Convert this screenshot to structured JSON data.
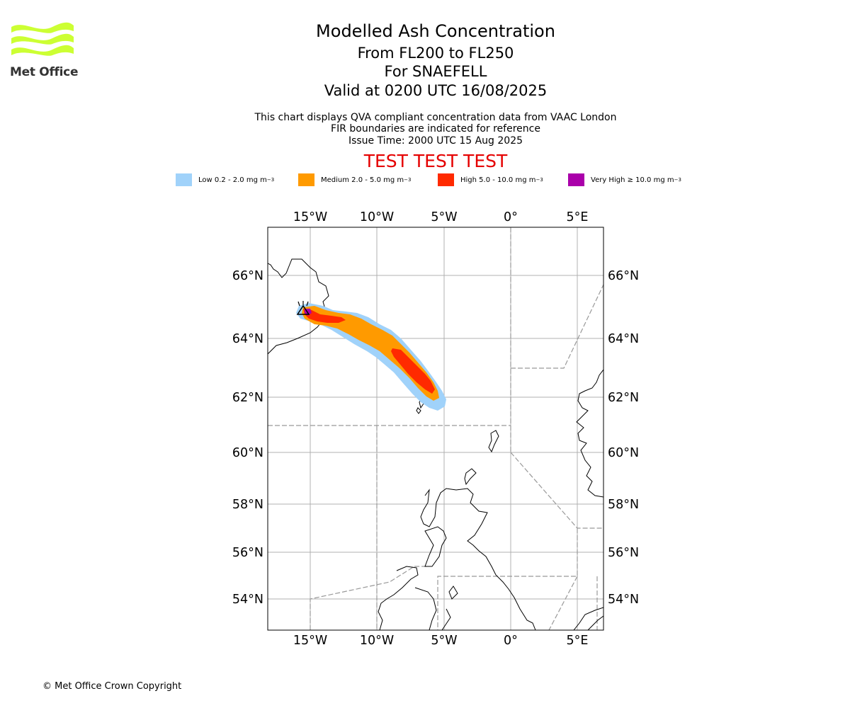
{
  "header": {
    "title": "Modelled Ash Concentration",
    "subtitle_levels": "From FL200 to FL250",
    "subtitle_volcano": "For SNAEFELL",
    "subtitle_valid": "Valid at 0200 UTC 16/08/2025",
    "info_line1": "This chart displays QVA compliant concentration data from VAAC London",
    "info_line2": "FIR boundaries are indicated for reference",
    "info_line3": "Issue Time: 2000 UTC 15 Aug 2025",
    "test_banner": "TEST TEST TEST"
  },
  "logo": {
    "name": "Met Office",
    "wave_color": "#ccff33"
  },
  "legend": [
    {
      "label_prefix": "Low 0.2 - 2.0 mg m",
      "exp": "−3",
      "color": "#a0d2fa"
    },
    {
      "label_prefix": "Medium 2.0 - 5.0 mg m",
      "exp": "−3",
      "color": "#ff9a00"
    },
    {
      "label_prefix": "High 5.0 - 10.0 mg m",
      "exp": "−3",
      "color": "#ff2a00"
    },
    {
      "label_prefix": "Very High  ≥  10.0 mg m",
      "exp": "−3",
      "color": "#aa00aa"
    }
  ],
  "map": {
    "lon_labels": [
      "15°W",
      "10°W",
      "5°W",
      "0°",
      "5°E"
    ],
    "lat_labels": [
      "66°N",
      "64°N",
      "62°N",
      "60°N",
      "58°N",
      "56°N",
      "54°N"
    ],
    "grid": true,
    "volcano_marker": "triangle"
  },
  "footer": {
    "copyright": "© Met Office Crown Copyright"
  }
}
